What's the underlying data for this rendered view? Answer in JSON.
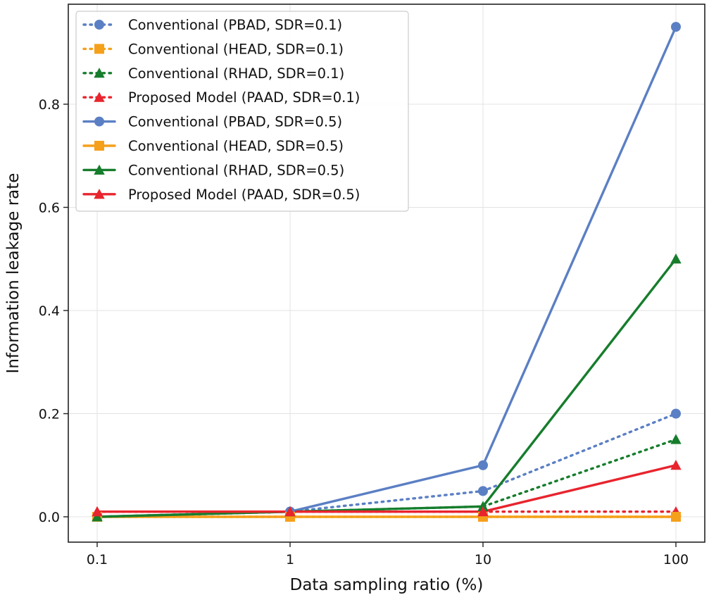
{
  "chart_data": {
    "type": "line",
    "title": "",
    "xlabel": "Data sampling ratio (%)",
    "ylabel": "Information leakage rate",
    "xscale": "log",
    "x": [
      0.1,
      1,
      10,
      100
    ],
    "x_tick_labels": [
      "0.1",
      "1",
      "10",
      "100"
    ],
    "y_ticks": [
      0.0,
      0.2,
      0.4,
      0.6,
      0.8
    ],
    "y_tick_labels": [
      "0.0",
      "0.2",
      "0.4",
      "0.6",
      "0.8"
    ],
    "ylim": [
      -0.05,
      0.99
    ],
    "grid": true,
    "legend_position": "top-left",
    "series": [
      {
        "name": "Conventional (PBAD, SDR=0.1)",
        "values": [
          0.0,
          0.01,
          0.05,
          0.2
        ],
        "color": "#5b7fc4",
        "linestyle": "dotted",
        "marker": "circle"
      },
      {
        "name": "Conventional (HEAD, SDR=0.1)",
        "values": [
          0.0,
          0.0,
          0.0,
          0.0
        ],
        "color": "#f5a01a",
        "linestyle": "dotted",
        "marker": "square"
      },
      {
        "name": "Conventional (RHAD, SDR=0.1)",
        "values": [
          0.0,
          0.01,
          0.02,
          0.15
        ],
        "color": "#167d2c",
        "linestyle": "dotted",
        "marker": "triangle"
      },
      {
        "name": "Proposed Model (PAAD, SDR=0.1)",
        "values": [
          0.01,
          0.01,
          0.01,
          0.01
        ],
        "color": "#e8242e",
        "linestyle": "dotted",
        "marker": "triangle"
      },
      {
        "name": "Conventional (PBAD, SDR=0.5)",
        "values": [
          0.0,
          0.01,
          0.1,
          0.95
        ],
        "color": "#5b7fc4",
        "linestyle": "solid",
        "marker": "circle"
      },
      {
        "name": "Conventional (HEAD, SDR=0.5)",
        "values": [
          0.0,
          0.0,
          0.0,
          0.0
        ],
        "color": "#f5a01a",
        "linestyle": "solid",
        "marker": "square"
      },
      {
        "name": "Conventional (RHAD, SDR=0.5)",
        "values": [
          0.0,
          0.01,
          0.02,
          0.5
        ],
        "color": "#167d2c",
        "linestyle": "solid",
        "marker": "triangle"
      },
      {
        "name": "Proposed Model (PAAD, SDR=0.5)",
        "values": [
          0.01,
          0.01,
          0.01,
          0.1
        ],
        "color": "#e8242e",
        "linestyle": "solid",
        "marker": "triangle"
      }
    ]
  }
}
